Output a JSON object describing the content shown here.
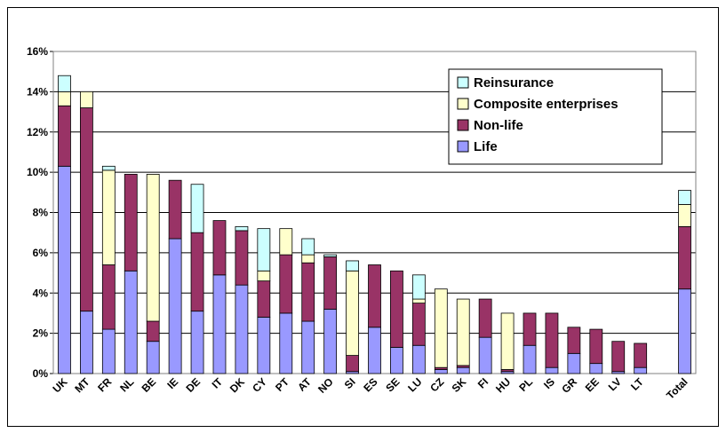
{
  "chart_data": {
    "type": "stacked_bar",
    "categories": [
      "UK",
      "MT",
      "FR",
      "NL",
      "BE",
      "IE",
      "DE",
      "IT",
      "DK",
      "CY",
      "PT",
      "AT",
      "NO",
      "SI",
      "ES",
      "SE",
      "LU",
      "CZ",
      "SK",
      "FI",
      "HU",
      "PL",
      "IS",
      "GR",
      "EE",
      "LV",
      "LT",
      null,
      "Total"
    ],
    "series": [
      {
        "name": "Life",
        "color": "#9999ff",
        "values": [
          10.3,
          3.1,
          2.2,
          5.1,
          1.6,
          6.7,
          3.1,
          4.9,
          4.4,
          2.8,
          3.0,
          2.6,
          3.2,
          0.1,
          2.3,
          1.3,
          1.4,
          0.2,
          0.3,
          1.8,
          0.1,
          1.4,
          0.3,
          1.0,
          0.5,
          0.1,
          0.3,
          null,
          4.2
        ]
      },
      {
        "name": "Non-life",
        "color": "#993366",
        "values": [
          3.0,
          10.1,
          3.2,
          4.8,
          1.0,
          2.9,
          3.9,
          2.7,
          2.7,
          1.8,
          2.9,
          2.9,
          2.6,
          0.8,
          3.1,
          3.8,
          2.1,
          0.1,
          0.1,
          1.9,
          0.1,
          1.6,
          2.7,
          1.3,
          1.7,
          1.5,
          1.2,
          null,
          3.1
        ]
      },
      {
        "name": "Composite enterprises",
        "color": "#ffffcc",
        "values": [
          0.7,
          0.8,
          4.7,
          0,
          7.3,
          0,
          0,
          0,
          0,
          0.5,
          1.3,
          0.4,
          0,
          4.2,
          0,
          0,
          0.2,
          3.9,
          3.3,
          0,
          2.8,
          0,
          0,
          0,
          0,
          0,
          0,
          null,
          1.1
        ]
      },
      {
        "name": "Reinsurance",
        "color": "#ccffff",
        "values": [
          0.8,
          0,
          0.2,
          0,
          0,
          0,
          2.4,
          0,
          0.2,
          2.1,
          0,
          0.8,
          0.1,
          0.5,
          0,
          0,
          1.2,
          0,
          0,
          0,
          0,
          0,
          0,
          0,
          0,
          0,
          0,
          null,
          0.7
        ]
      }
    ],
    "ylim": [
      0,
      16
    ],
    "yticks": [
      {
        "value": 0,
        "label": "0%"
      },
      {
        "value": 2,
        "label": "2%"
      },
      {
        "value": 4,
        "label": "4%"
      },
      {
        "value": 6,
        "label": "6%"
      },
      {
        "value": 8,
        "label": "8%"
      },
      {
        "value": 10,
        "label": "10%"
      },
      {
        "value": 12,
        "label": "12%"
      },
      {
        "value": 14,
        "label": "14%"
      },
      {
        "value": 16,
        "label": "16%"
      }
    ],
    "grid": true,
    "legend": "upper-right"
  }
}
